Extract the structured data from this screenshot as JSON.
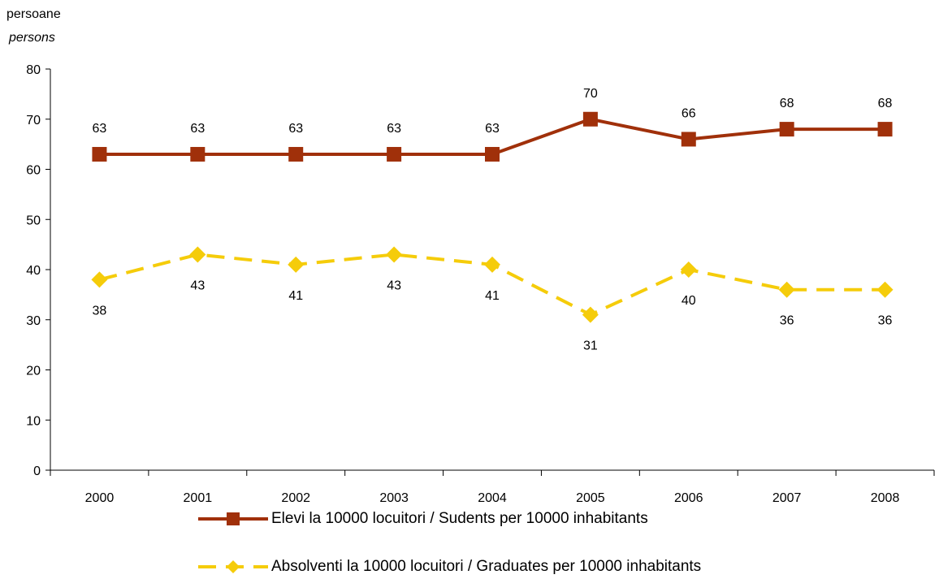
{
  "y_unit": {
    "ro": "persoane",
    "en": "persons"
  },
  "chart_data": {
    "type": "line",
    "categories": [
      "2000",
      "2001",
      "2002",
      "2003",
      "2004",
      "2005",
      "2006",
      "2007",
      "2008"
    ],
    "ylim": [
      0,
      80
    ],
    "yticks": [
      0,
      10,
      20,
      30,
      40,
      50,
      60,
      70,
      80
    ],
    "grid": false,
    "legend_position": "bottom",
    "series": [
      {
        "name": "Elevi la 10000 locuitori / Sudents per 10000 inhabitants",
        "values": [
          63,
          63,
          63,
          63,
          63,
          70,
          66,
          68,
          68
        ],
        "color": "#A0300A",
        "marker": "square",
        "line_style": "solid",
        "label_position": "above"
      },
      {
        "name": "Absolventi la 10000 locuitori / Graduates per 10000 inhabitants",
        "values": [
          38,
          43,
          41,
          43,
          41,
          31,
          40,
          36,
          36
        ],
        "color": "#F5CC0A",
        "marker": "diamond",
        "line_style": "dashed",
        "label_position": "below"
      }
    ]
  }
}
